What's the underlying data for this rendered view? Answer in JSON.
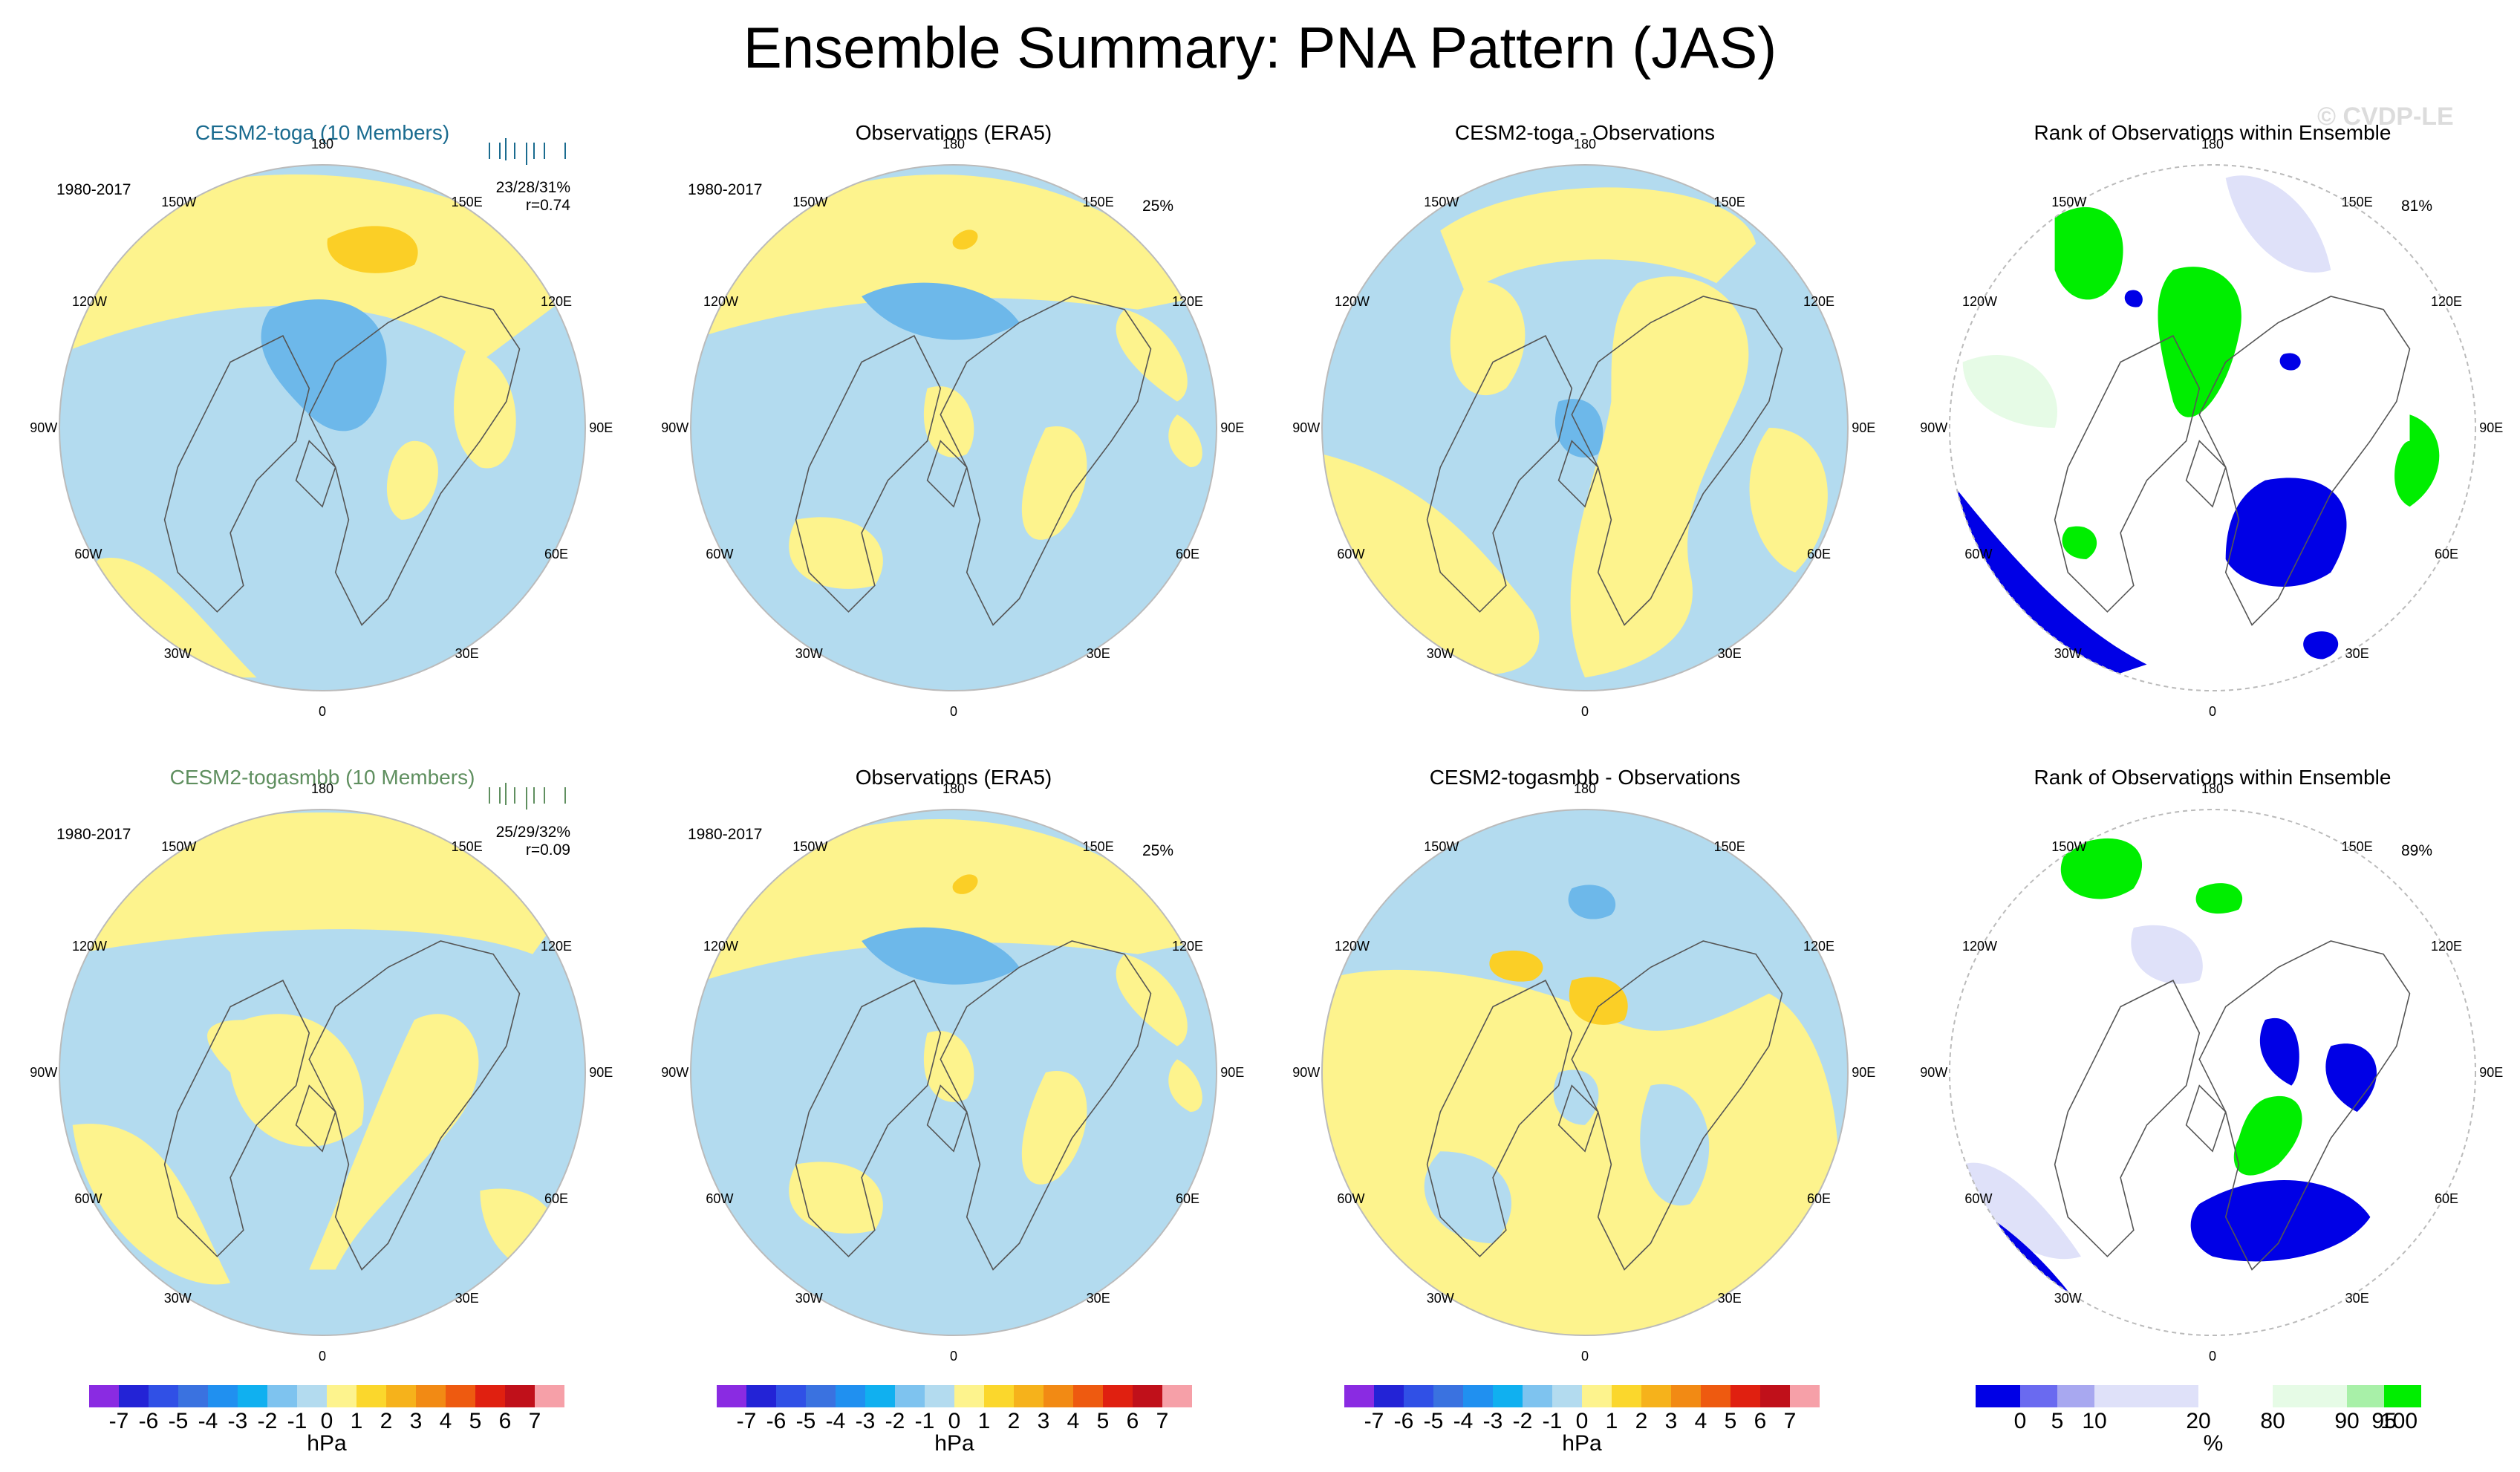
{
  "title": "Ensemble Summary: PNA Pattern (JAS)",
  "watermark": "© CVDP-LE",
  "colors": {
    "negative": "#b3dbef",
    "positive": "#fdf38d",
    "pos_strong": "#fbcf26",
    "neg_strong": "#6db8ea",
    "rank_low": "#0000e6",
    "rank_high": "#00ee00",
    "rank_mid_low": "#dfe1f9",
    "rank_mid_high": "#e6fbe6"
  },
  "longitude_labels": [
    "180",
    "150E",
    "120E",
    "90E",
    "60E",
    "30E",
    "0",
    "30W",
    "60W",
    "90W",
    "120W",
    "150W"
  ],
  "rows": [
    {
      "model_title": "CESM2-toga (10 Members)",
      "model_title_color": "#1a6b8f",
      "period": "1980-2017",
      "stats_pct": "23/28/31%",
      "stats_r": "r=0.74",
      "obs_title": "Observations (ERA5)",
      "obs_period": "1980-2017",
      "obs_pct": "25%",
      "diff_title": "CESM2-toga - Observations",
      "rank_title": "Rank of Observations within Ensemble",
      "rank_pct": "81%"
    },
    {
      "model_title": "CESM2-togasmbb (10 Members)",
      "model_title_color": "#5f8f5f",
      "period": "1980-2017",
      "stats_pct": "25/29/32%",
      "stats_r": "r=0.09",
      "obs_title": "Observations (ERA5)",
      "obs_period": "1980-2017",
      "obs_pct": "25%",
      "diff_title": "CESM2-togasmbb - Observations",
      "rank_title": "Rank of Observations within Ensemble",
      "rank_pct": "89%"
    }
  ],
  "chart_data": {
    "type": "heatmap",
    "title": "Ensemble Summary: PNA Pattern (JAS)",
    "projection": "north polar stereographic",
    "panels": [
      "ensemble mean",
      "observations",
      "difference",
      "rank"
    ],
    "colorbar_hpa": {
      "unit": "hPa",
      "tick_labels": [
        "-7",
        "-6",
        "-5",
        "-4",
        "-3",
        "-2",
        "-1",
        "0",
        "1",
        "2",
        "3",
        "4",
        "5",
        "6",
        "7"
      ],
      "colors": [
        "#8a2be2",
        "#2323d6",
        "#3050e6",
        "#3a72e0",
        "#2090f0",
        "#10b0f0",
        "#7ec3ef",
        "#b3dbef",
        "#fdf38d",
        "#fbd72c",
        "#f6b21b",
        "#f28a14",
        "#ee5a10",
        "#e02010",
        "#c0101a",
        "#f6a0a8"
      ]
    },
    "colorbar_rank": {
      "unit": "%",
      "tick_labels": [
        "0",
        "5",
        "10",
        "20",
        "80",
        "90",
        "95",
        "100"
      ],
      "colors": [
        "#0000e6",
        "#6a6af0",
        "#a8a8f0",
        "#dfe1f9",
        "#ffffff",
        "#e6fbe6",
        "#a8f0a8",
        "#00ee00"
      ]
    }
  }
}
